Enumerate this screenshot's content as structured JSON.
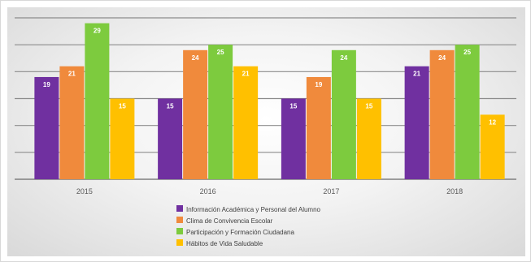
{
  "chart_data": {
    "type": "bar",
    "categories": [
      "2015",
      "2016",
      "2017",
      "2018"
    ],
    "series": [
      {
        "name": "Información Académica y Personal del Alumno",
        "color": "#7030A0",
        "values": [
          19,
          15,
          15,
          21
        ]
      },
      {
        "name": "Clima de Convivencia Escolar",
        "color": "#F08A3C",
        "values": [
          21,
          24,
          19,
          24
        ]
      },
      {
        "name": "Participación y Formación Ciudadana",
        "color": "#7DCB3E",
        "values": [
          29,
          25,
          24,
          25
        ]
      },
      {
        "name": "Hábitos de Vida Saludable",
        "color": "#FFC000",
        "values": [
          15,
          21,
          15,
          12
        ]
      }
    ],
    "ylim": [
      0,
      30
    ],
    "grid": true,
    "legend_position": "bottom"
  }
}
